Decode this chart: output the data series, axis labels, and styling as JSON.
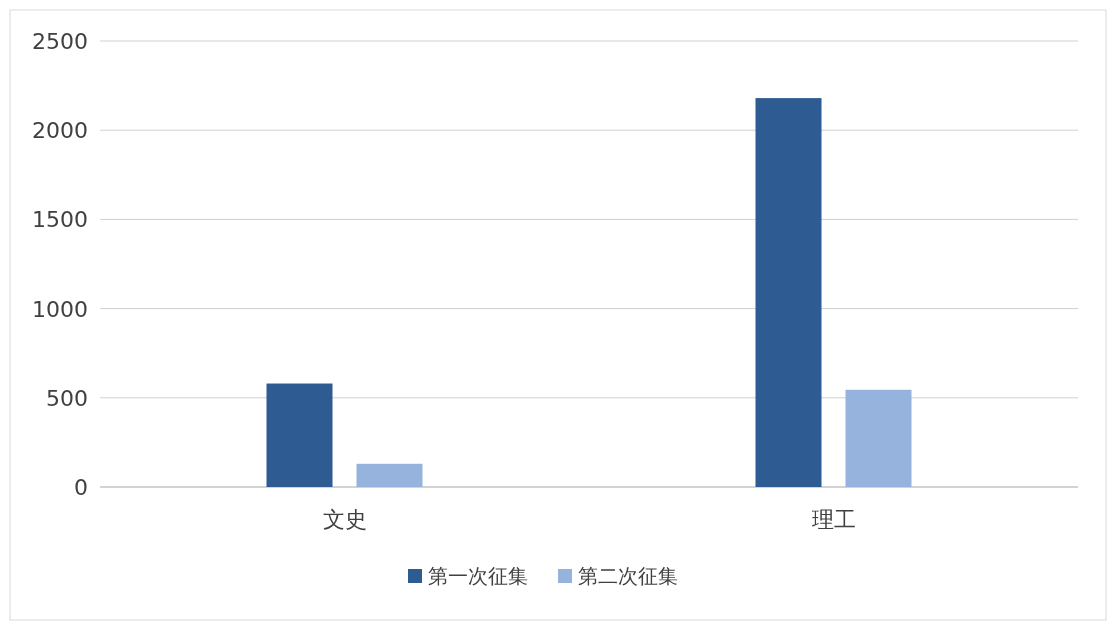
{
  "chart_data": {
    "type": "bar",
    "categories": [
      "文史",
      "理工"
    ],
    "series": [
      {
        "name": "第一次征集",
        "color": "#2e5b91",
        "values": [
          580,
          2180
        ]
      },
      {
        "name": "第二次征集",
        "color": "#95b3dc",
        "values": [
          130,
          545
        ]
      }
    ],
    "ylim": [
      0,
      2500
    ],
    "yticks": [
      0,
      500,
      1000,
      1500,
      2000,
      2500
    ],
    "grid": "y",
    "legend": "bottom"
  }
}
